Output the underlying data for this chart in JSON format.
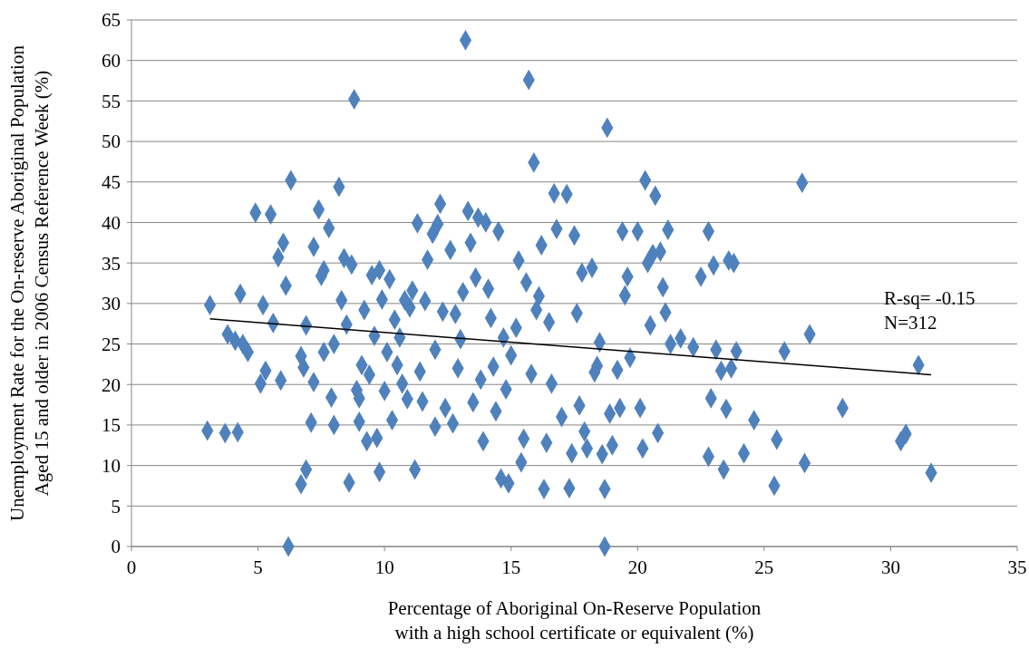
{
  "chart_data": {
    "type": "scatter",
    "xlabel": "Percentage of Aboriginal On-Reserve Population\nwith a high school certificate or equivalent (%)",
    "ylabel": "Unemployment Rate for the On-reserve Aboriginal Population\nAged 15 and older in 2006 Census Reference Week (%)",
    "xlim": [
      0,
      35
    ],
    "xticks": [
      0,
      5,
      10,
      15,
      20,
      25,
      30,
      35
    ],
    "ylim": [
      0,
      65
    ],
    "yticks": [
      0,
      5,
      10,
      15,
      20,
      25,
      30,
      35,
      40,
      45,
      50,
      55,
      60,
      65
    ],
    "grid": "y",
    "annotations": [
      "R-sq= -0.15",
      "N=312"
    ],
    "series": [
      {
        "marker": "diamond",
        "color": "#4f81bd",
        "x": [
          3.1,
          3.0,
          3.7,
          4.2,
          3.8,
          4.1,
          4.3,
          4.4,
          4.6,
          4.9,
          5.1,
          5.3,
          5.5,
          5.2,
          5.6,
          5.8,
          5.9,
          6.0,
          6.1,
          6.3,
          6.2,
          6.7,
          6.8,
          6.9,
          6.7,
          6.9,
          7.1,
          7.2,
          7.2,
          7.4,
          7.5,
          7.6,
          7.6,
          7.8,
          7.9,
          8.0,
          8.0,
          8.2,
          8.3,
          8.4,
          8.5,
          8.6,
          8.7,
          8.8,
          8.9,
          9.0,
          9.0,
          9.1,
          9.2,
          9.3,
          9.4,
          9.5,
          9.6,
          9.7,
          9.8,
          9.8,
          9.9,
          10.0,
          10.1,
          10.2,
          10.3,
          10.4,
          10.5,
          10.6,
          10.7,
          10.8,
          10.9,
          11.0,
          11.1,
          11.2,
          11.3,
          11.4,
          11.5,
          11.6,
          11.7,
          11.9,
          12.0,
          12.1,
          12.2,
          12.0,
          12.3,
          12.4,
          12.6,
          12.7,
          12.8,
          12.9,
          13.0,
          13.1,
          13.2,
          13.3,
          13.4,
          13.5,
          13.6,
          13.7,
          13.8,
          13.9,
          14.0,
          14.1,
          14.2,
          14.3,
          14.4,
          14.5,
          14.6,
          14.7,
          14.8,
          14.9,
          15.0,
          15.2,
          15.3,
          15.4,
          15.5,
          15.6,
          15.7,
          15.8,
          15.9,
          16.0,
          16.1,
          16.2,
          16.3,
          16.4,
          16.5,
          16.6,
          16.7,
          16.8,
          17.0,
          17.2,
          17.3,
          17.4,
          17.5,
          17.6,
          17.7,
          17.8,
          17.9,
          18.0,
          18.2,
          18.3,
          18.4,
          18.5,
          18.6,
          18.7,
          18.7,
          18.8,
          18.9,
          19.0,
          19.2,
          19.3,
          19.4,
          19.5,
          19.6,
          19.7,
          20.0,
          20.1,
          20.2,
          20.3,
          20.4,
          20.5,
          20.6,
          20.7,
          20.8,
          20.9,
          21.0,
          21.1,
          21.2,
          21.3,
          21.7,
          22.2,
          22.5,
          22.8,
          22.8,
          22.9,
          23.0,
          23.1,
          23.3,
          23.4,
          23.5,
          23.6,
          23.7,
          23.8,
          23.9,
          24.2,
          24.6,
          25.5,
          25.4,
          25.8,
          26.5,
          26.6,
          26.8,
          28.1,
          30.4,
          30.6,
          31.1,
          31.6
        ],
        "values": [
          29.8,
          14.3,
          14.0,
          14.1,
          26.2,
          25.4,
          31.2,
          25.0,
          24.0,
          41.2,
          20.1,
          21.7,
          41.0,
          29.8,
          27.6,
          35.7,
          20.5,
          37.5,
          32.2,
          45.2,
          0.0,
          23.5,
          22.1,
          9.5,
          7.7,
          27.3,
          15.3,
          37.0,
          20.3,
          41.6,
          33.4,
          34.1,
          24.0,
          39.3,
          18.4,
          25.0,
          15.0,
          44.4,
          30.4,
          35.6,
          27.4,
          7.9,
          34.8,
          55.2,
          19.3,
          18.3,
          15.4,
          22.4,
          29.2,
          13.0,
          21.2,
          33.5,
          26.0,
          13.4,
          9.2,
          34.1,
          30.5,
          19.2,
          24.0,
          33.0,
          15.6,
          28.0,
          22.4,
          25.8,
          20.1,
          30.4,
          18.2,
          29.5,
          31.6,
          9.5,
          39.9,
          21.6,
          17.9,
          30.3,
          35.4,
          38.6,
          24.3,
          39.8,
          42.3,
          14.8,
          29.0,
          17.1,
          36.6,
          15.2,
          28.7,
          22.0,
          25.6,
          31.4,
          62.5,
          41.4,
          37.5,
          17.8,
          33.2,
          40.6,
          20.6,
          13.0,
          40.0,
          31.8,
          28.2,
          22.2,
          16.7,
          38.9,
          8.4,
          25.8,
          19.4,
          7.8,
          23.6,
          27.0,
          35.3,
          10.4,
          13.3,
          32.6,
          57.6,
          21.3,
          47.4,
          29.2,
          30.9,
          37.2,
          7.1,
          12.8,
          27.7,
          20.1,
          43.6,
          39.2,
          16.0,
          43.5,
          7.2,
          11.5,
          38.4,
          28.8,
          17.4,
          33.8,
          14.2,
          12.1,
          34.4,
          21.5,
          22.3,
          25.2,
          11.4,
          0.0,
          7.1,
          51.7,
          16.4,
          12.5,
          21.8,
          17.1,
          38.9,
          31.0,
          33.3,
          23.3,
          38.9,
          17.1,
          12.1,
          45.2,
          35.0,
          27.3,
          36.1,
          43.3,
          14.0,
          36.4,
          32.0,
          28.9,
          39.1,
          25.0,
          25.7,
          24.6,
          33.3,
          38.9,
          11.1,
          18.3,
          34.7,
          24.3,
          21.7,
          9.5,
          17.0,
          35.3,
          22.0,
          35.0,
          24.1,
          11.5,
          15.6,
          13.2,
          7.5,
          24.1,
          44.9,
          10.3,
          26.2,
          17.1,
          13.0,
          13.9,
          22.4,
          9.1
        ]
      },
      {
        "type": "line",
        "line_style": "solid",
        "color": "#000000",
        "x": [
          3.1,
          31.6
        ],
        "values": [
          28.1,
          21.2
        ]
      }
    ]
  }
}
